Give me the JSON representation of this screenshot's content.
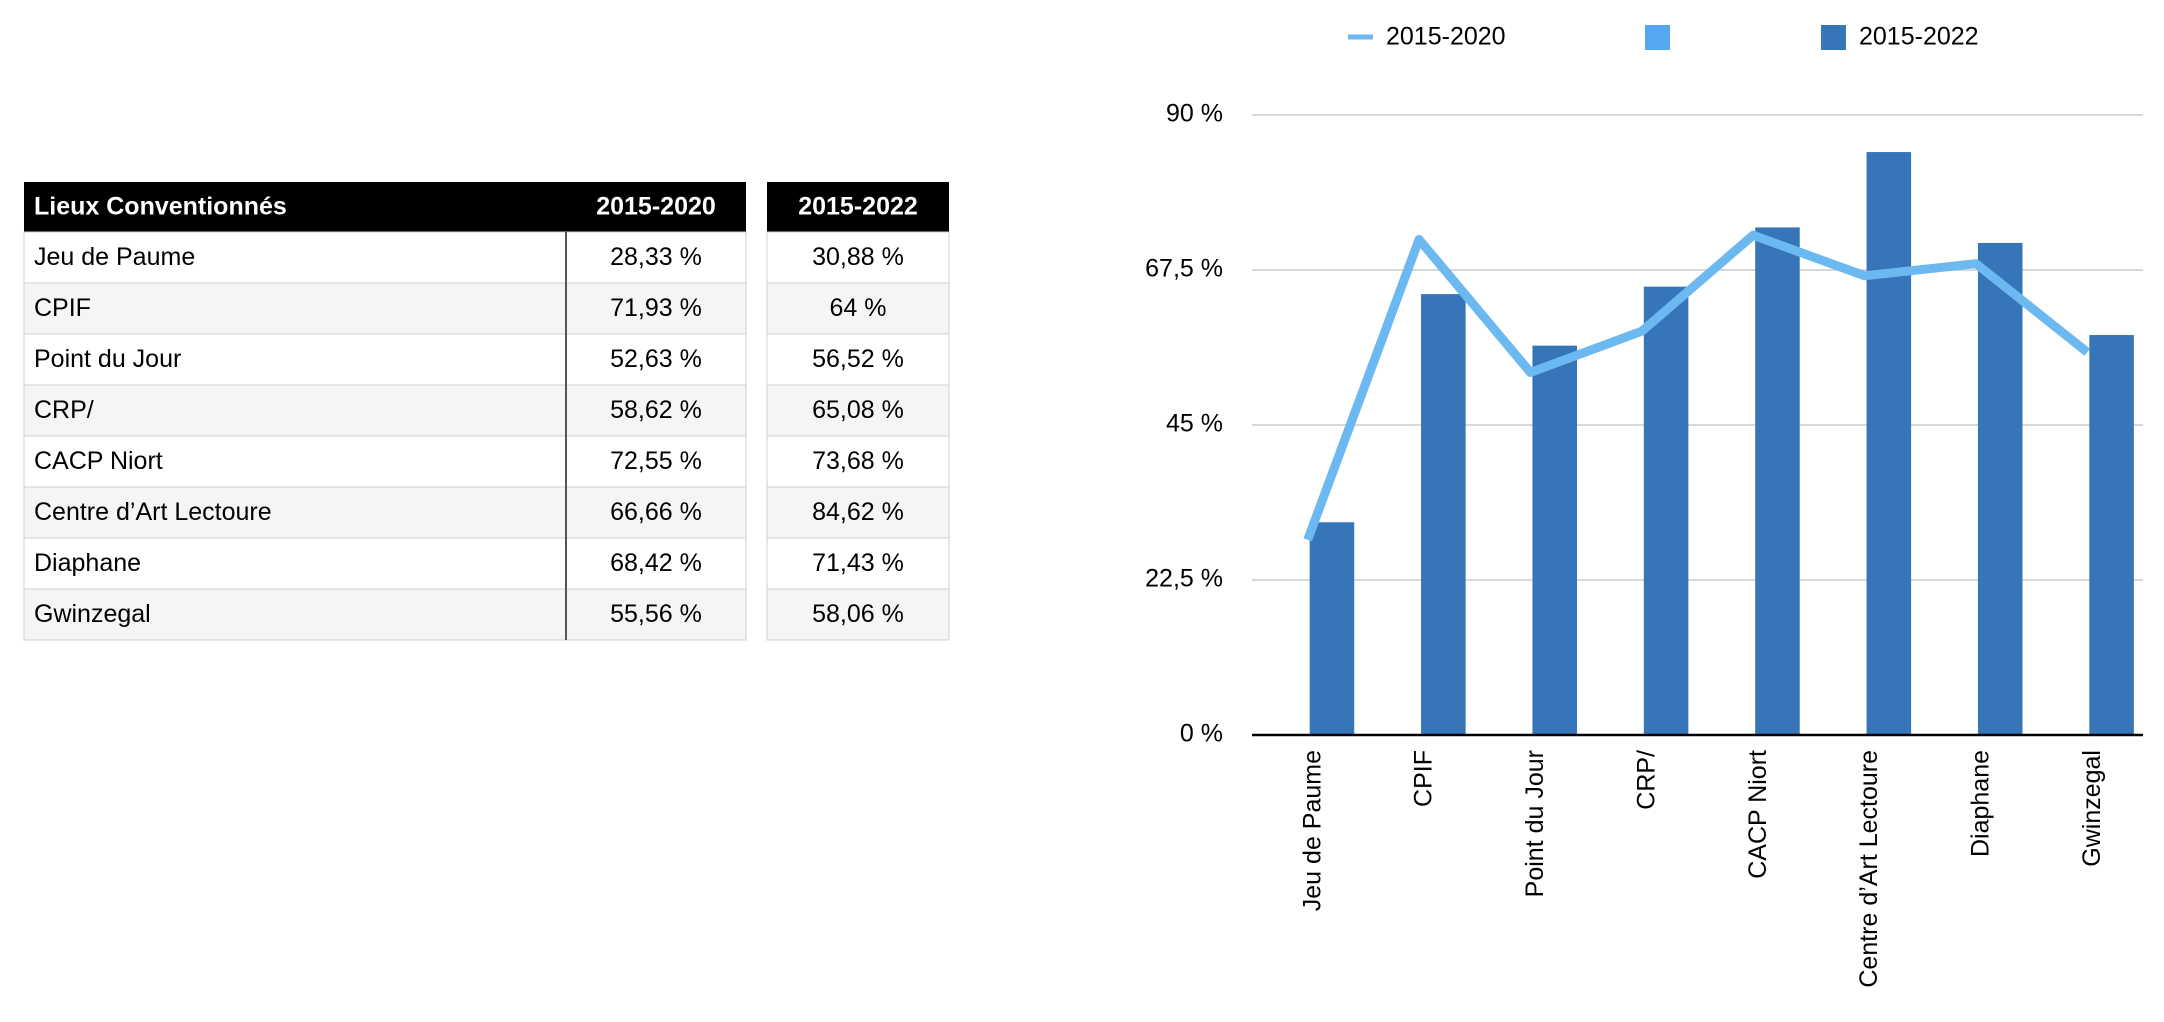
{
  "table": {
    "header": [
      "Lieux Conventionnés",
      "2015-2020",
      "2015-2022"
    ],
    "rows": [
      [
        "Jeu de Paume",
        "28,33 %",
        "30,88 %"
      ],
      [
        "CPIF",
        "71,93 %",
        "64 %"
      ],
      [
        "Point du Jour",
        "52,63 %",
        "56,52 %"
      ],
      [
        "CRP/",
        "58,62 %",
        "65,08 %"
      ],
      [
        "CACP Niort",
        "72,55 %",
        "73,68 %"
      ],
      [
        "Centre d’Art Lectoure",
        "66,66 %",
        "84,62 %"
      ],
      [
        "Diaphane",
        "68,42 %",
        "71,43 %"
      ],
      [
        "Gwinzegal",
        "55,56 %",
        "58,06 %"
      ]
    ]
  },
  "chart_data": {
    "type": "bar",
    "categories": [
      "Jeu de Paume",
      "CPIF",
      "Point du Jour",
      "CRP/",
      "CACP Niort",
      "Centre d’Art Lectoure",
      "Diaphane",
      "Gwinzegal"
    ],
    "series": [
      {
        "name": "2015-2020",
        "type": "line",
        "color": "#6cb8f0",
        "values": [
          28.33,
          71.93,
          52.63,
          58.62,
          72.55,
          66.66,
          68.42,
          55.56
        ]
      },
      {
        "name": "2015-2022",
        "type": "bar",
        "color": "#3575b8",
        "values": [
          30.88,
          64,
          56.52,
          65.08,
          73.68,
          84.62,
          71.43,
          58.06
        ]
      }
    ],
    "ylim": [
      0,
      90
    ],
    "yticks": [
      {
        "value": 0,
        "label": "0 %"
      },
      {
        "value": 22.5,
        "label": "22,5 %"
      },
      {
        "value": 45,
        "label": "45 %"
      },
      {
        "value": 67.5,
        "label": "67,5 %"
      },
      {
        "value": 90,
        "label": "90 %"
      }
    ],
    "grid": true,
    "legend": "top"
  }
}
